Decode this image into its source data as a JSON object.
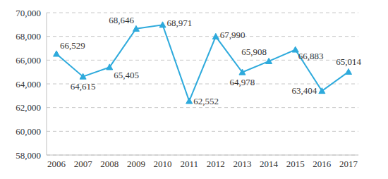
{
  "chart_data": {
    "type": "line",
    "categories": [
      "2006",
      "2007",
      "2008",
      "2009",
      "2010",
      "2011",
      "2012",
      "2013",
      "2014",
      "2015",
      "2016",
      "2017"
    ],
    "values": [
      66529,
      64615,
      65405,
      68646,
      68971,
      62552,
      67990,
      64978,
      65908,
      66883,
      63404,
      65014
    ],
    "value_labels": [
      "66,529",
      "64,615",
      "65,405",
      "68,646",
      "68,971",
      "62,552",
      "67,990",
      "64,978",
      "65,908",
      "66,883",
      "63,404",
      "65,014"
    ],
    "color": "#2eaadc",
    "marker": "triangle",
    "ylim": [
      58000,
      70000
    ],
    "yticks": [
      {
        "value": 58000,
        "label": "58,000"
      },
      {
        "value": 60000,
        "label": "60,000"
      },
      {
        "value": 62000,
        "label": "62,000"
      },
      {
        "value": 64000,
        "label": "64,000"
      },
      {
        "value": 66000,
        "label": "66,000"
      },
      {
        "value": 68000,
        "label": "68,000"
      },
      {
        "value": 70000,
        "label": "70,000"
      }
    ],
    "grid": true,
    "data_labels": true
  }
}
